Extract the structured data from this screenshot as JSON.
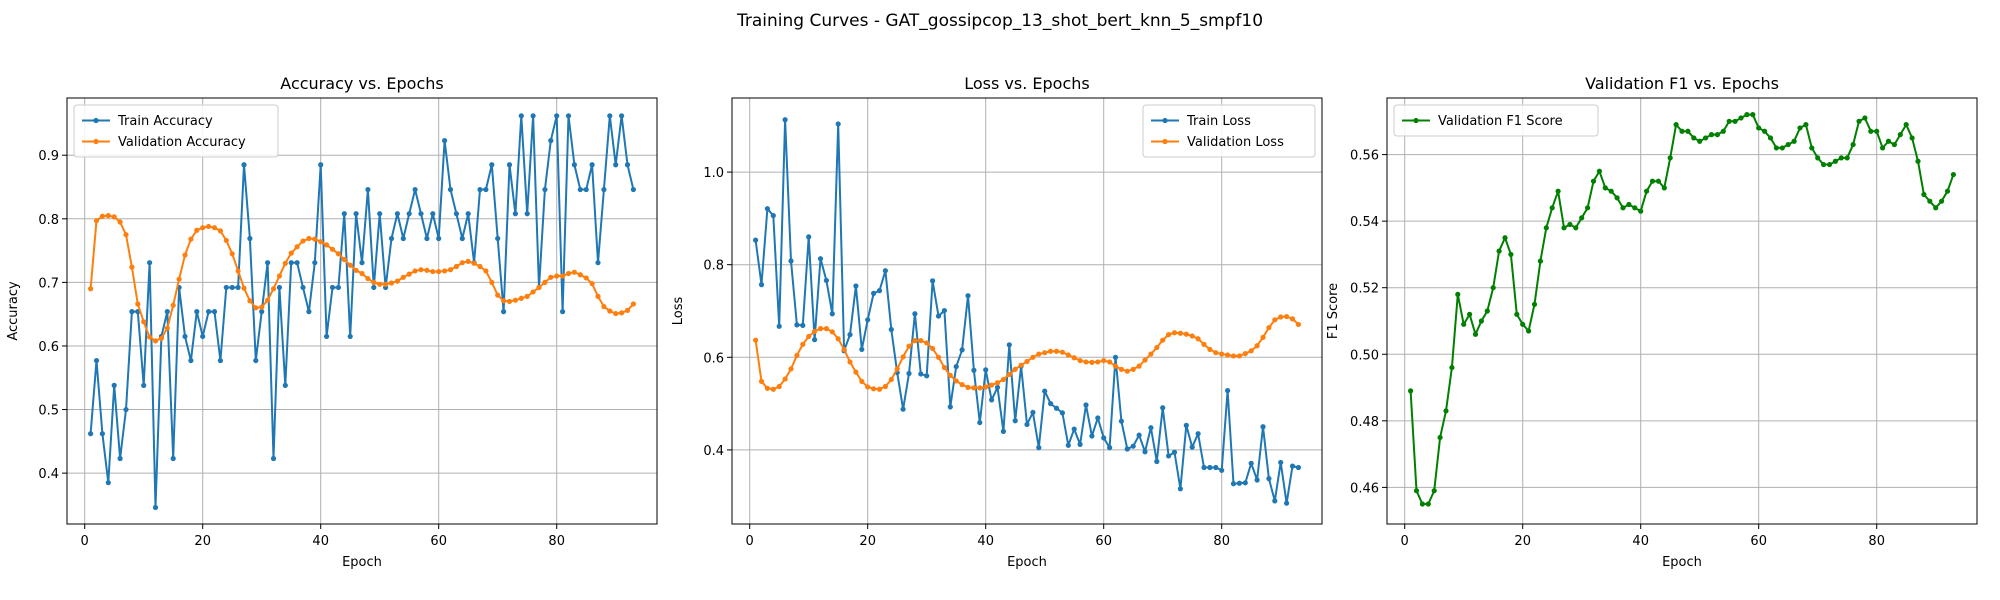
{
  "figure": {
    "suptitle": "Training Curves - GAT_gossipcop_13_shot_bert_knn_5_smpf10"
  },
  "colors": {
    "blue": "#1f77b4",
    "orange": "#ff7f0e",
    "green": "#008000",
    "grid": "#b0b0b0"
  },
  "chart_data": [
    {
      "type": "line",
      "title": "Accuracy vs. Epochs",
      "xlabel": "Epoch",
      "ylabel": "Accuracy",
      "xlim": [
        -3,
        97
      ],
      "ylim": [
        0.32,
        0.99
      ],
      "xticks": [
        0,
        20,
        40,
        60,
        80
      ],
      "yticks": [
        0.4,
        0.5,
        0.6,
        0.7,
        0.8,
        0.9
      ],
      "grid": true,
      "legend": "upper-left",
      "series": [
        {
          "name": "Train Accuracy",
          "color": "#1f77b4",
          "x": [
            1,
            2,
            3,
            4,
            5,
            6,
            7,
            8,
            9,
            10,
            11,
            12,
            13,
            14,
            15,
            16,
            17,
            18,
            19,
            20,
            21,
            22,
            23,
            24,
            25,
            26,
            27,
            28,
            29,
            30,
            31,
            32,
            33,
            34,
            35,
            36,
            37,
            38,
            39,
            40,
            41,
            42,
            43,
            44,
            45,
            46,
            47,
            48,
            49,
            50,
            51,
            52,
            53,
            54,
            55,
            56,
            57,
            58,
            59,
            60,
            61,
            62,
            63,
            64,
            65,
            66,
            67,
            68,
            69,
            70,
            71,
            72,
            73,
            74,
            75,
            76,
            77,
            78,
            79,
            80,
            81,
            82,
            83,
            84,
            85,
            86,
            87,
            88,
            89,
            90,
            91,
            92,
            93
          ],
          "values": [
            0.462,
            0.577,
            0.462,
            0.385,
            0.538,
            0.423,
            0.5,
            0.654,
            0.654,
            0.538,
            0.731,
            0.346,
            0.615,
            0.654,
            0.423,
            0.692,
            0.615,
            0.577,
            0.654,
            0.615,
            0.654,
            0.654,
            0.577,
            0.692,
            0.692,
            0.692,
            0.885,
            0.769,
            0.577,
            0.654,
            0.731,
            0.423,
            0.692,
            0.538,
            0.731,
            0.731,
            0.692,
            0.654,
            0.731,
            0.885,
            0.615,
            0.692,
            0.692,
            0.808,
            0.615,
            0.808,
            0.731,
            0.846,
            0.692,
            0.808,
            0.692,
            0.769,
            0.808,
            0.769,
            0.808,
            0.846,
            0.808,
            0.769,
            0.808,
            0.769,
            0.923,
            0.846,
            0.808,
            0.769,
            0.808,
            0.731,
            0.846,
            0.846,
            0.885,
            0.769,
            0.654,
            0.885,
            0.808,
            0.962,
            0.808,
            0.962,
            0.692,
            0.846,
            0.923,
            0.962,
            0.654,
            0.962,
            0.885,
            0.846,
            0.846,
            0.885,
            0.731,
            0.846,
            0.962,
            0.885,
            0.962,
            0.885,
            0.846
          ]
        },
        {
          "name": "Validation Accuracy",
          "color": "#ff7f0e",
          "x": [
            1,
            2,
            3,
            4,
            5,
            6,
            7,
            8,
            9,
            10,
            11,
            12,
            13,
            14,
            15,
            16,
            17,
            18,
            19,
            20,
            21,
            22,
            23,
            24,
            25,
            26,
            27,
            28,
            29,
            30,
            31,
            32,
            33,
            34,
            35,
            36,
            37,
            38,
            39,
            40,
            41,
            42,
            43,
            44,
            45,
            46,
            47,
            48,
            49,
            50,
            51,
            52,
            53,
            54,
            55,
            56,
            57,
            58,
            59,
            60,
            61,
            62,
            63,
            64,
            65,
            66,
            67,
            68,
            69,
            70,
            71,
            72,
            73,
            74,
            75,
            76,
            77,
            78,
            79,
            80,
            81,
            82,
            83,
            84,
            85,
            86,
            87,
            88,
            89,
            90,
            91,
            92,
            93
          ],
          "values": [
            0.69,
            0.797,
            0.804,
            0.805,
            0.803,
            0.795,
            0.775,
            0.724,
            0.666,
            0.638,
            0.614,
            0.608,
            0.612,
            0.628,
            0.664,
            0.705,
            0.743,
            0.768,
            0.782,
            0.786,
            0.788,
            0.786,
            0.781,
            0.766,
            0.745,
            0.718,
            0.691,
            0.671,
            0.66,
            0.661,
            0.672,
            0.69,
            0.71,
            0.73,
            0.746,
            0.756,
            0.765,
            0.769,
            0.768,
            0.764,
            0.759,
            0.752,
            0.745,
            0.736,
            0.727,
            0.719,
            0.714,
            0.706,
            0.7,
            0.697,
            0.697,
            0.699,
            0.702,
            0.708,
            0.713,
            0.718,
            0.72,
            0.719,
            0.717,
            0.717,
            0.718,
            0.72,
            0.725,
            0.731,
            0.733,
            0.73,
            0.725,
            0.718,
            0.7,
            0.68,
            0.671,
            0.67,
            0.672,
            0.675,
            0.678,
            0.685,
            0.692,
            0.7,
            0.708,
            0.71,
            0.71,
            0.714,
            0.716,
            0.712,
            0.707,
            0.698,
            0.678,
            0.662,
            0.655,
            0.651,
            0.652,
            0.656,
            0.666
          ]
        }
      ]
    },
    {
      "type": "line",
      "title": "Loss vs. Epochs",
      "xlabel": "Epoch",
      "ylabel": "Loss",
      "xlim": [
        -3,
        97
      ],
      "ylim": [
        0.24,
        1.16
      ],
      "xticks": [
        0,
        20,
        40,
        60,
        80
      ],
      "yticks": [
        0.4,
        0.6,
        0.8,
        1.0
      ],
      "grid": true,
      "legend": "upper-right",
      "series": [
        {
          "name": "Train Loss",
          "color": "#1f77b4",
          "x": [
            1,
            2,
            3,
            4,
            5,
            6,
            7,
            8,
            9,
            10,
            11,
            12,
            13,
            14,
            15,
            16,
            17,
            18,
            19,
            20,
            21,
            22,
            23,
            24,
            25,
            26,
            27,
            28,
            29,
            30,
            31,
            32,
            33,
            34,
            35,
            36,
            37,
            38,
            39,
            40,
            41,
            42,
            43,
            44,
            45,
            46,
            47,
            48,
            49,
            50,
            51,
            52,
            53,
            54,
            55,
            56,
            57,
            58,
            59,
            60,
            61,
            62,
            63,
            64,
            65,
            66,
            67,
            68,
            69,
            70,
            71,
            72,
            73,
            74,
            75,
            76,
            77,
            78,
            79,
            80,
            81,
            82,
            83,
            84,
            85,
            86,
            87,
            88,
            89,
            90,
            91,
            92,
            93
          ],
          "values": [
            0.853,
            0.757,
            0.921,
            0.906,
            0.667,
            1.113,
            0.808,
            0.67,
            0.669,
            0.86,
            0.638,
            0.813,
            0.766,
            0.694,
            1.104,
            0.614,
            0.649,
            0.754,
            0.617,
            0.681,
            0.738,
            0.744,
            0.787,
            0.66,
            0.567,
            0.488,
            0.565,
            0.694,
            0.564,
            0.56,
            0.765,
            0.689,
            0.701,
            0.493,
            0.58,
            0.616,
            0.733,
            0.572,
            0.459,
            0.573,
            0.508,
            0.535,
            0.44,
            0.627,
            0.463,
            0.581,
            0.455,
            0.481,
            0.405,
            0.527,
            0.5,
            0.49,
            0.48,
            0.41,
            0.445,
            0.412,
            0.497,
            0.43,
            0.469,
            0.426,
            0.405,
            0.6,
            0.462,
            0.402,
            0.408,
            0.432,
            0.396,
            0.448,
            0.375,
            0.491,
            0.387,
            0.395,
            0.316,
            0.453,
            0.406,
            0.435,
            0.362,
            0.362,
            0.362,
            0.356,
            0.528,
            0.327,
            0.328,
            0.329,
            0.371,
            0.335,
            0.45,
            0.338,
            0.29,
            0.373,
            0.285,
            0.365,
            0.362
          ]
        },
        {
          "name": "Validation Loss",
          "color": "#ff7f0e",
          "x": [
            1,
            2,
            3,
            4,
            5,
            6,
            7,
            8,
            9,
            10,
            11,
            12,
            13,
            14,
            15,
            16,
            17,
            18,
            19,
            20,
            21,
            22,
            23,
            24,
            25,
            26,
            27,
            28,
            29,
            30,
            31,
            32,
            33,
            34,
            35,
            36,
            37,
            38,
            39,
            40,
            41,
            42,
            43,
            44,
            45,
            46,
            47,
            48,
            49,
            50,
            51,
            52,
            53,
            54,
            55,
            56,
            57,
            58,
            59,
            60,
            61,
            62,
            63,
            64,
            65,
            66,
            67,
            68,
            69,
            70,
            71,
            72,
            73,
            74,
            75,
            76,
            77,
            78,
            79,
            80,
            81,
            82,
            83,
            84,
            85,
            86,
            87,
            88,
            89,
            90,
            91,
            92,
            93
          ],
          "values": [
            0.637,
            0.548,
            0.533,
            0.531,
            0.537,
            0.553,
            0.575,
            0.604,
            0.628,
            0.645,
            0.656,
            0.662,
            0.662,
            0.655,
            0.64,
            0.617,
            0.59,
            0.568,
            0.548,
            0.536,
            0.532,
            0.531,
            0.537,
            0.552,
            0.575,
            0.601,
            0.624,
            0.636,
            0.636,
            0.631,
            0.619,
            0.6,
            0.578,
            0.561,
            0.549,
            0.541,
            0.535,
            0.534,
            0.534,
            0.536,
            0.54,
            0.545,
            0.552,
            0.563,
            0.574,
            0.583,
            0.591,
            0.6,
            0.607,
            0.61,
            0.613,
            0.613,
            0.611,
            0.605,
            0.599,
            0.593,
            0.59,
            0.589,
            0.59,
            0.593,
            0.59,
            0.581,
            0.574,
            0.57,
            0.574,
            0.581,
            0.594,
            0.607,
            0.621,
            0.637,
            0.649,
            0.653,
            0.652,
            0.65,
            0.646,
            0.64,
            0.628,
            0.617,
            0.61,
            0.607,
            0.605,
            0.603,
            0.603,
            0.608,
            0.614,
            0.625,
            0.643,
            0.664,
            0.681,
            0.687,
            0.688,
            0.683,
            0.671
          ]
        }
      ]
    },
    {
      "type": "line",
      "title": "Validation F1 vs. Epochs",
      "xlabel": "Epoch",
      "ylabel": "F1 Score",
      "xlim": [
        -3,
        97
      ],
      "ylim": [
        0.449,
        0.577
      ],
      "xticks": [
        0,
        20,
        40,
        60,
        80
      ],
      "yticks": [
        0.46,
        0.48,
        0.5,
        0.52,
        0.54,
        0.56
      ],
      "grid": true,
      "legend": "upper-left",
      "series": [
        {
          "name": "Validation F1 Score",
          "color": "#008000",
          "x": [
            1,
            2,
            3,
            4,
            5,
            6,
            7,
            8,
            9,
            10,
            11,
            12,
            13,
            14,
            15,
            16,
            17,
            18,
            19,
            20,
            21,
            22,
            23,
            24,
            25,
            26,
            27,
            28,
            29,
            30,
            31,
            32,
            33,
            34,
            35,
            36,
            37,
            38,
            39,
            40,
            41,
            42,
            43,
            44,
            45,
            46,
            47,
            48,
            49,
            50,
            51,
            52,
            53,
            54,
            55,
            56,
            57,
            58,
            59,
            60,
            61,
            62,
            63,
            64,
            65,
            66,
            67,
            68,
            69,
            70,
            71,
            72,
            73,
            74,
            75,
            76,
            77,
            78,
            79,
            80,
            81,
            82,
            83,
            84,
            85,
            86,
            87,
            88,
            89,
            90,
            91,
            92,
            93
          ],
          "values": [
            0.489,
            0.459,
            0.455,
            0.455,
            0.459,
            0.475,
            0.483,
            0.496,
            0.518,
            0.509,
            0.512,
            0.506,
            0.51,
            0.513,
            0.52,
            0.531,
            0.535,
            0.53,
            0.512,
            0.509,
            0.507,
            0.515,
            0.528,
            0.538,
            0.544,
            0.549,
            0.538,
            0.539,
            0.538,
            0.541,
            0.544,
            0.552,
            0.555,
            0.55,
            0.549,
            0.547,
            0.544,
            0.545,
            0.544,
            0.543,
            0.549,
            0.552,
            0.552,
            0.55,
            0.559,
            0.569,
            0.567,
            0.567,
            0.565,
            0.564,
            0.565,
            0.566,
            0.566,
            0.567,
            0.57,
            0.57,
            0.571,
            0.572,
            0.572,
            0.568,
            0.567,
            0.565,
            0.562,
            0.562,
            0.563,
            0.564,
            0.568,
            0.569,
            0.562,
            0.559,
            0.557,
            0.557,
            0.558,
            0.559,
            0.559,
            0.563,
            0.57,
            0.571,
            0.567,
            0.567,
            0.562,
            0.564,
            0.563,
            0.566,
            0.569,
            0.565,
            0.558,
            0.548,
            0.546,
            0.544,
            0.546,
            0.549,
            0.554
          ]
        }
      ]
    }
  ]
}
